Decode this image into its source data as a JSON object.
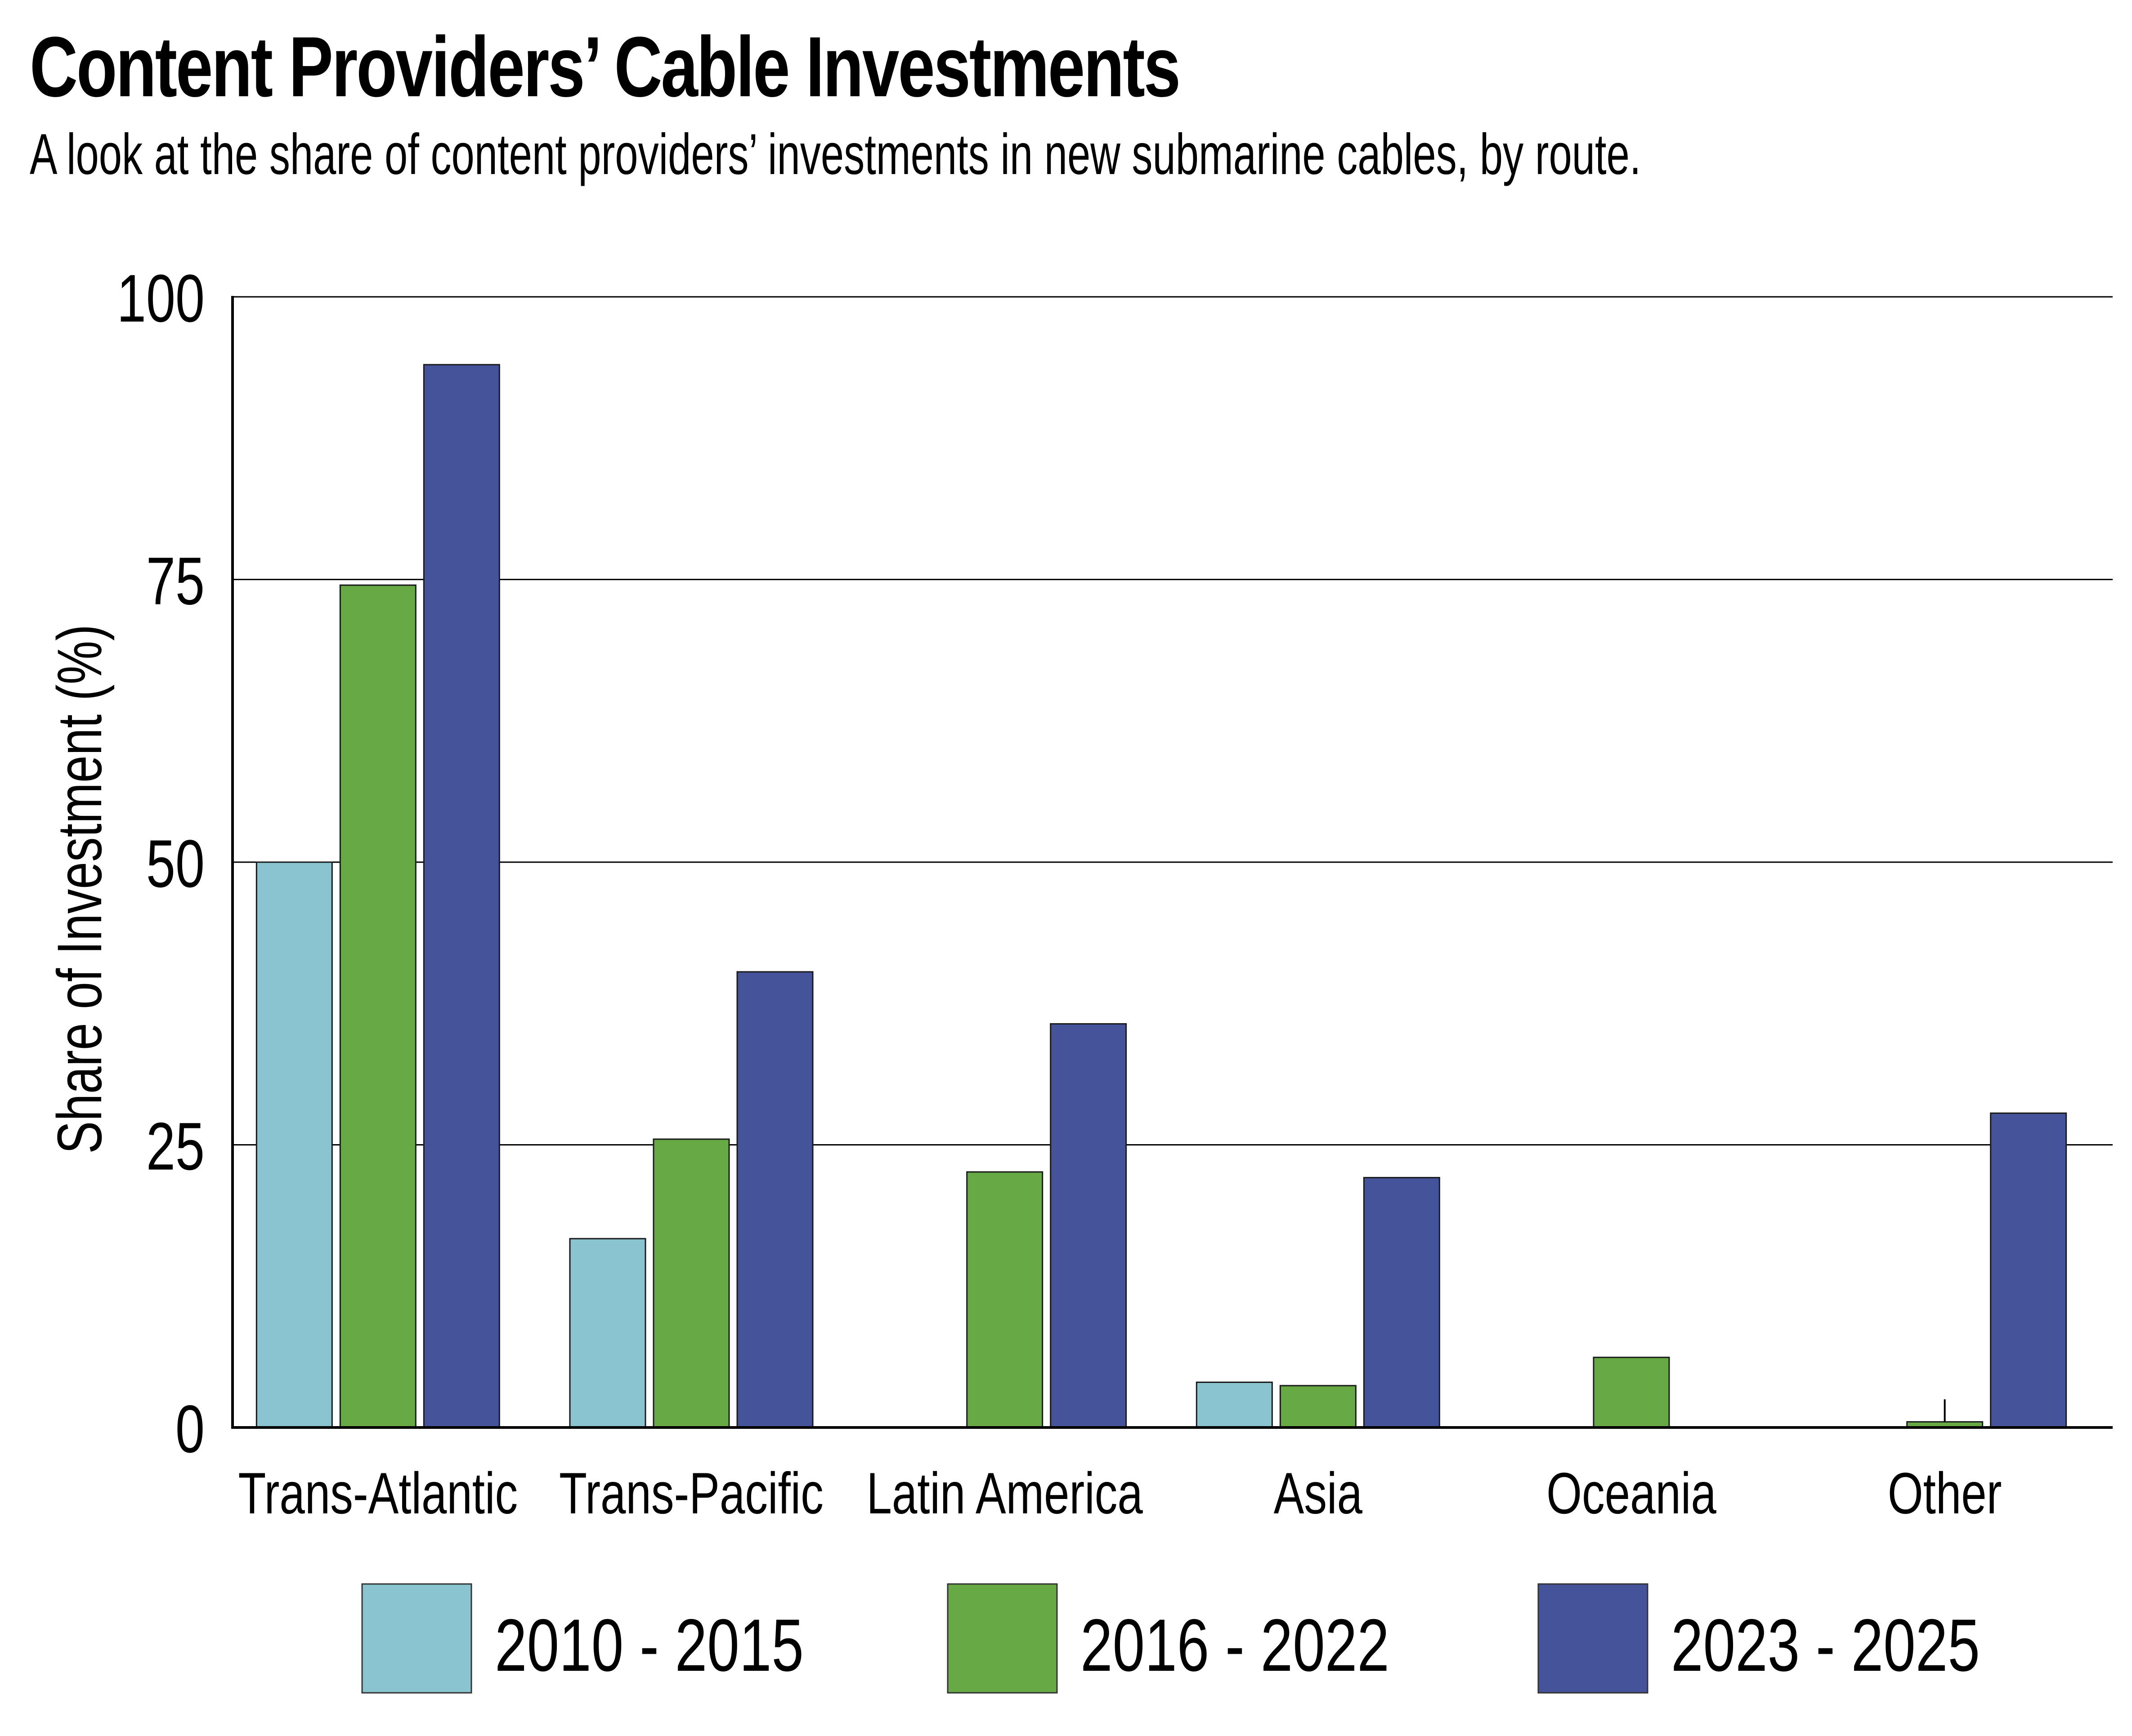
{
  "title": "Content Providers’ Cable Investments",
  "subtitle": "A look at the share of content providers’ investments in new submarine cables, by route.",
  "colors": {
    "series_2010_2015": "#8AC4D0",
    "series_2016_2022": "#67A945",
    "series_2023_2025": "#44539A",
    "gridline": "#000000",
    "text": "#000000"
  },
  "chart_data": {
    "type": "bar",
    "title": "Content Providers’ Cable Investments",
    "subtitle": "A look at the share of content providers’ investments in new submarine cables, by route.",
    "xlabel": "",
    "ylabel": "Share of Investment (%)",
    "ylim": [
      0,
      100
    ],
    "yticks": [
      0,
      25,
      50,
      75,
      100
    ],
    "grid": true,
    "legend_position": "bottom",
    "categories": [
      "Trans-Atlantic",
      "Trans-Pacific",
      "Latin America",
      "Asia",
      "Oceania",
      "Other"
    ],
    "series": [
      {
        "name": "2010 - 2015",
        "color": "#8AC4D0",
        "values": [
          50.0,
          16.7,
          0,
          4.0,
          0,
          0
        ]
      },
      {
        "name": "2016 - 2022",
        "color": "#67A945",
        "values": [
          74.5,
          25.5,
          22.6,
          3.7,
          6.2,
          0.5
        ]
      },
      {
        "name": "2023 - 2025",
        "color": "#44539A",
        "values": [
          94.0,
          40.3,
          35.7,
          22.1,
          0,
          27.8
        ]
      }
    ]
  }
}
